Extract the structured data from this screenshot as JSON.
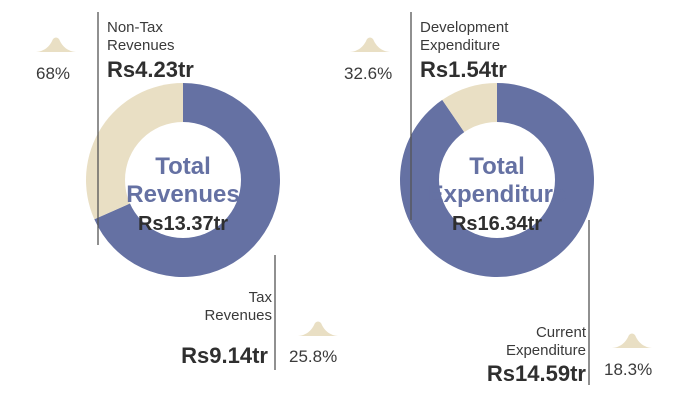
{
  "colors": {
    "primary": "#6571a3",
    "secondary": "#e9dfc4",
    "leader": "#555555"
  },
  "chart_data": [
    {
      "type": "pie",
      "variant": "donut",
      "center_title": [
        "Total",
        "Revenues"
      ],
      "center_value": "Rs13.37tr",
      "slices": [
        {
          "label": [
            "Tax",
            "Revenues"
          ],
          "value": 9.14,
          "value_text": "Rs9.14tr",
          "change": "25.8%",
          "trend": "up",
          "color_key": "primary"
        },
        {
          "label": [
            "Non-Tax",
            "Revenues"
          ],
          "value": 4.23,
          "value_text": "Rs4.23tr",
          "change": "68%",
          "trend": "up",
          "color_key": "secondary"
        }
      ]
    },
    {
      "type": "pie",
      "variant": "donut",
      "center_title": [
        "Total",
        "Expenditure"
      ],
      "center_value": "Rs16.34tr",
      "slices": [
        {
          "label": [
            "Current",
            "Expenditure"
          ],
          "value": 14.59,
          "value_text": "Rs14.59tr",
          "change": "18.3%",
          "trend": "up",
          "color_key": "primary"
        },
        {
          "label": [
            "Development",
            "Expenditure"
          ],
          "value": 1.54,
          "value_text": "Rs1.54tr",
          "change": "32.6%",
          "trend": "up",
          "color_key": "secondary"
        }
      ]
    }
  ]
}
